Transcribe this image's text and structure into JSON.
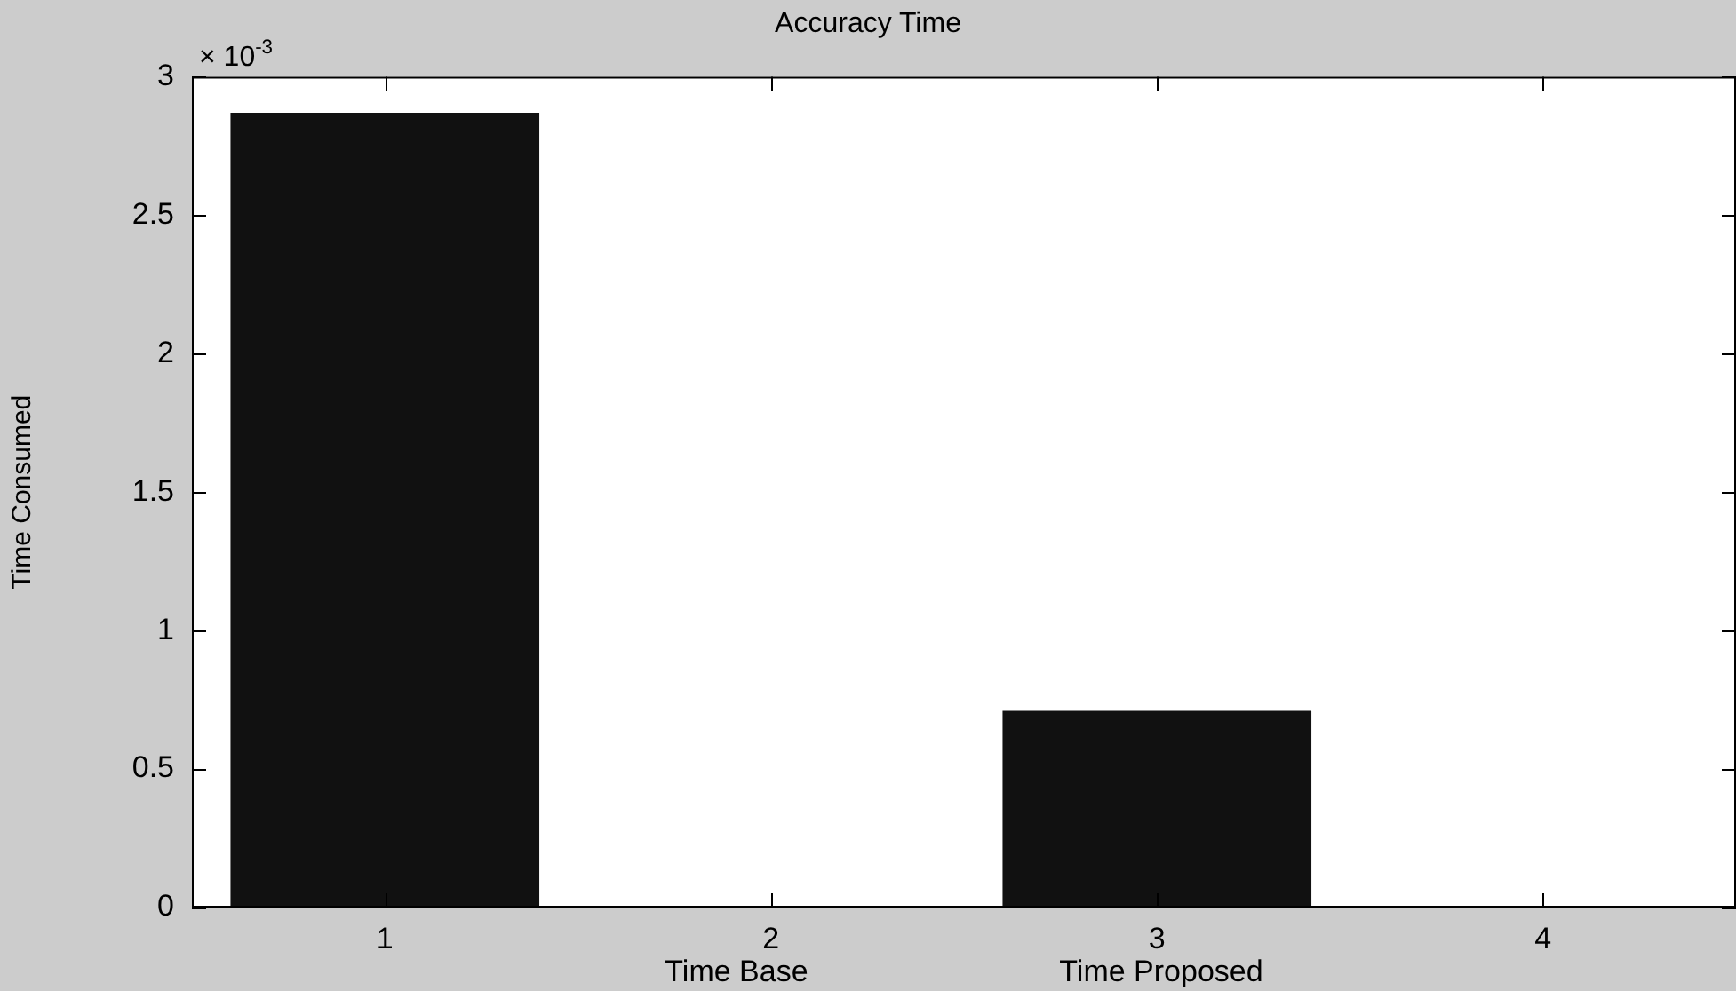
{
  "chart_data": {
    "type": "bar",
    "title": "Accuracy Time",
    "xlabel": "Time Base                              Time Proposed",
    "ylabel": "Time Consumed",
    "categories": [
      "1",
      "2",
      "3",
      "4"
    ],
    "values": [
      2.87,
      0,
      0.71,
      0
    ],
    "color": "#111111",
    "ylim": [
      0,
      3
    ],
    "yticks": [
      0,
      0.5,
      1,
      1.5,
      2,
      2.5,
      3
    ],
    "annotations": [
      "× 10$^{-3}$"
    ],
    "grid": false,
    "legend": false
  }
}
